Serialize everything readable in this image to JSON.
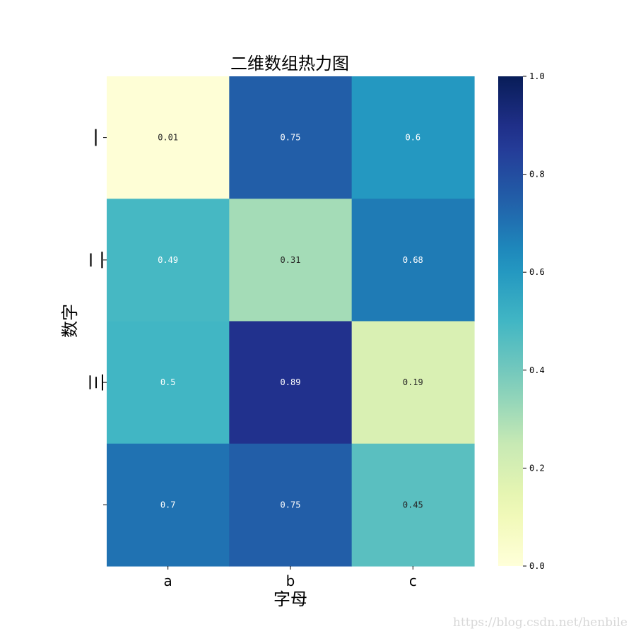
{
  "chart_data": {
    "type": "heatmap",
    "title": "二维数组热力图",
    "xlabel": "字母",
    "ylabel": "数字",
    "x_categories": [
      "a",
      "b",
      "c"
    ],
    "y_categories": [
      "一",
      "二",
      "三",
      ""
    ],
    "values": [
      [
        0.01,
        0.75,
        0.6
      ],
      [
        0.49,
        0.31,
        0.68
      ],
      [
        0.5,
        0.89,
        0.19
      ],
      [
        0.7,
        0.75,
        0.45
      ]
    ],
    "value_labels": [
      [
        "0.01",
        "0.75",
        "0.6"
      ],
      [
        "0.49",
        "0.31",
        "0.68"
      ],
      [
        "0.5",
        "0.89",
        "0.19"
      ],
      [
        "0.7",
        "0.75",
        "0.45"
      ]
    ],
    "colormap": "YlGnBu",
    "colorbar": {
      "range": [
        0.0,
        1.0
      ],
      "ticks": [
        "0.0",
        "0.2",
        "0.4",
        "0.6",
        "0.8",
        "1.0"
      ]
    }
  },
  "watermark": "https://blog.csdn.net/henbile"
}
